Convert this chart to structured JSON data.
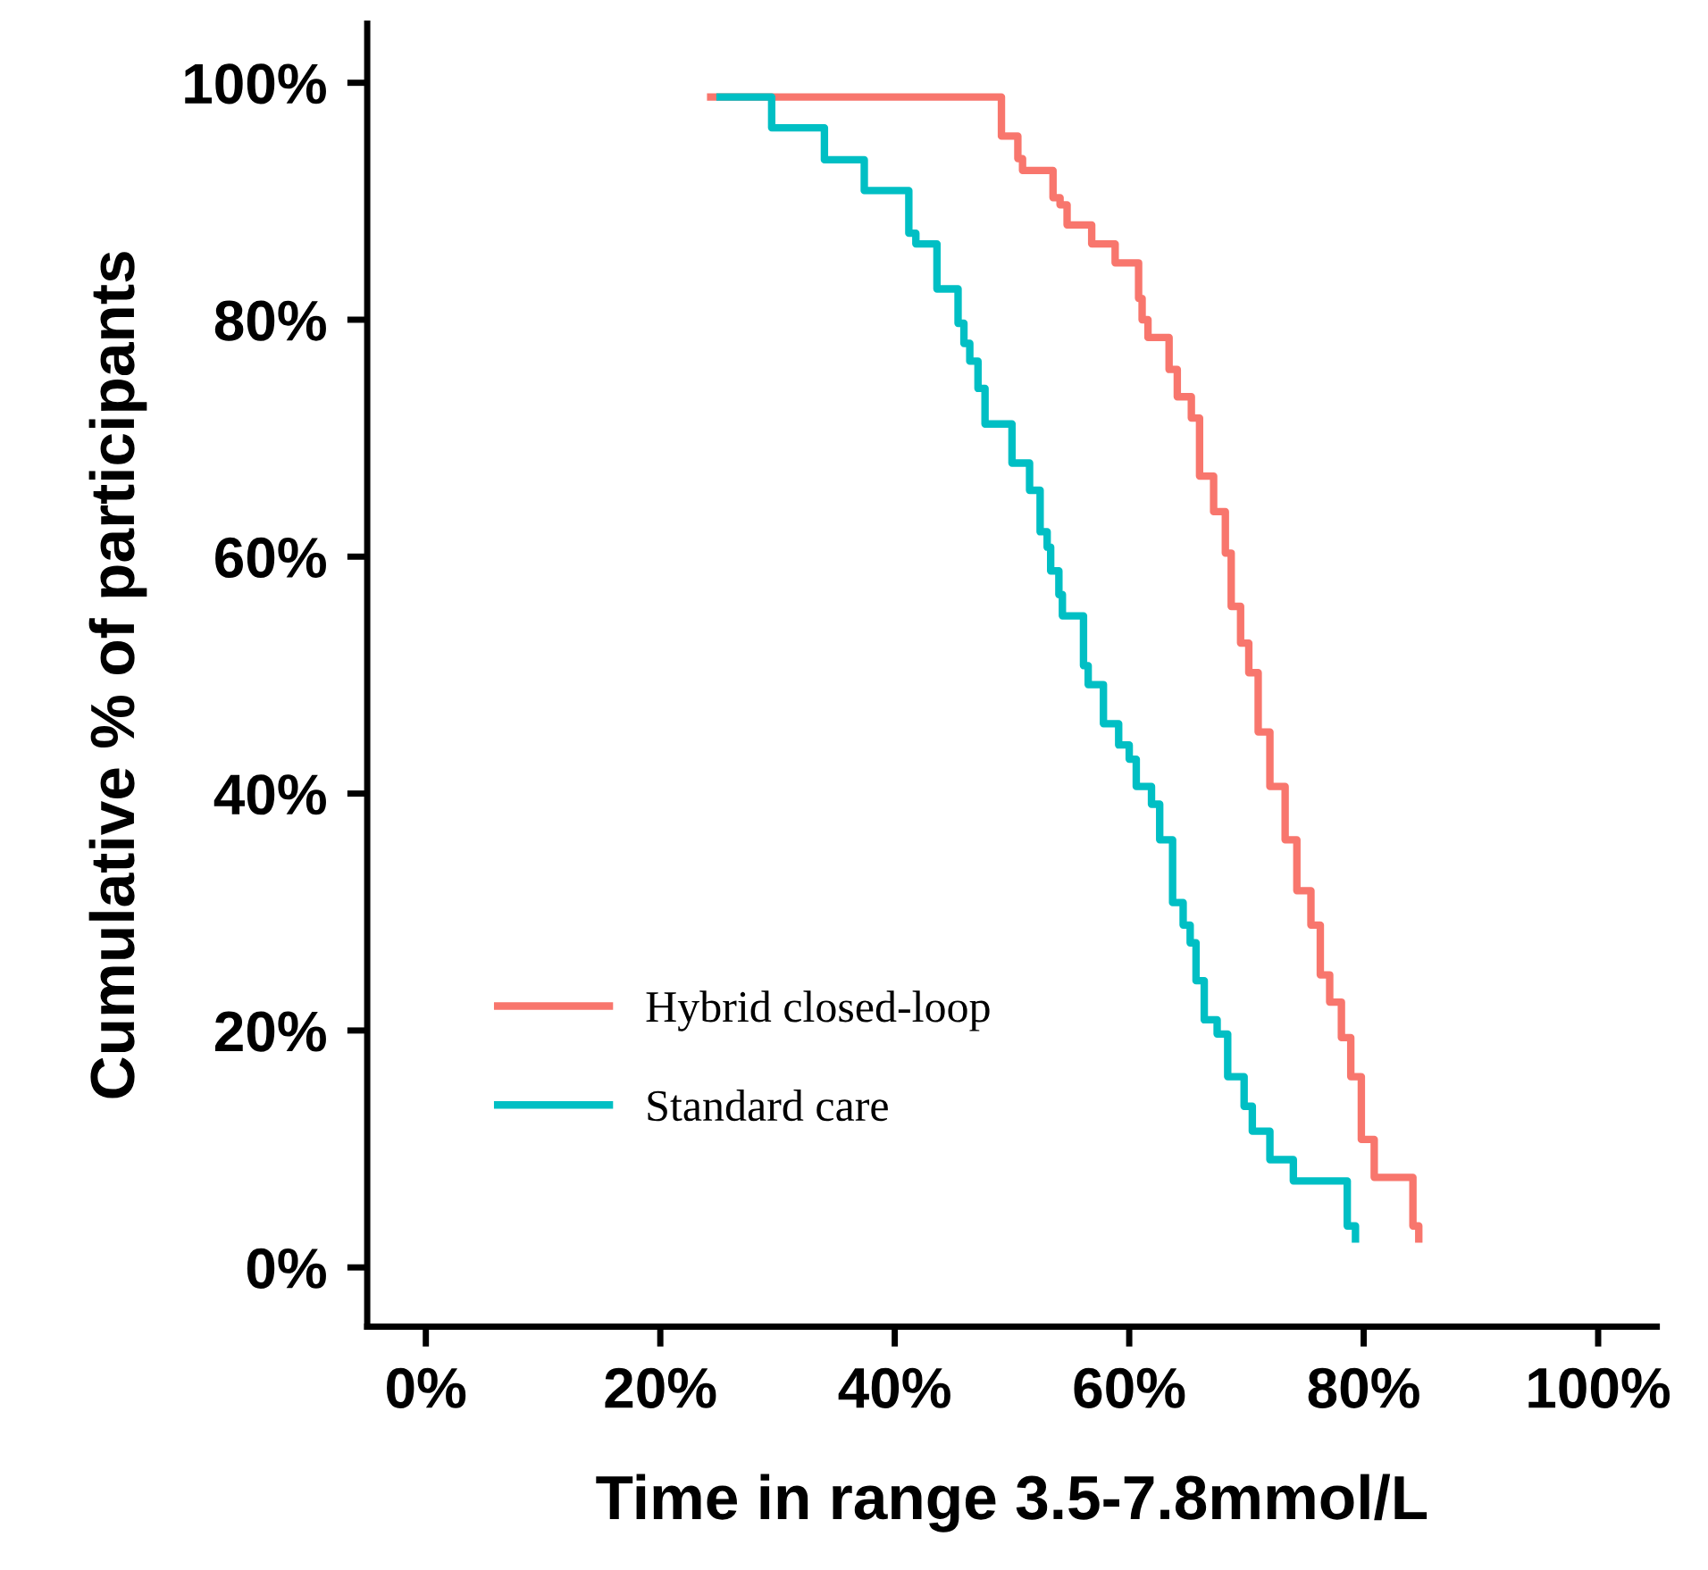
{
  "chart_data": {
    "type": "step",
    "xlabel": "Time in range 3.5-7.8mmol/L",
    "ylabel": "Cumulative % of participants",
    "xlim": [
      -5,
      105
    ],
    "ylim": [
      -5,
      105
    ],
    "xticks": [
      {
        "value": 0,
        "label": "0%"
      },
      {
        "value": 20,
        "label": "20%"
      },
      {
        "value": 40,
        "label": "40%"
      },
      {
        "value": 60,
        "label": "60%"
      },
      {
        "value": 80,
        "label": "80%"
      },
      {
        "value": 100,
        "label": "100%"
      }
    ],
    "yticks": [
      {
        "value": 0,
        "label": "0%"
      },
      {
        "value": 20,
        "label": "20%"
      },
      {
        "value": 40,
        "label": "40%"
      },
      {
        "value": 60,
        "label": "60%"
      },
      {
        "value": 80,
        "label": "80%"
      },
      {
        "value": 100,
        "label": "100%"
      }
    ],
    "grid": false,
    "legend": "bottom left",
    "marker": "none",
    "line_style": "solid",
    "series": [
      {
        "name": "Hybrid closed-loop",
        "color": "#f8766d",
        "x": [
          24.3,
          49.1,
          50.5,
          50.9,
          53.5,
          54.1,
          54.7,
          56.8,
          58.8,
          60.8,
          61.1,
          61.6,
          63.4,
          64.1,
          65.3,
          66.0,
          67.2,
          68.2,
          68.7,
          69.5,
          70.2,
          71.0,
          72.0,
          73.3,
          74.3,
          75.5,
          76.3,
          77.1,
          78.1,
          78.9,
          79.8,
          80.9,
          84.2,
          84.7
        ],
        "values": [
          98.8,
          95.5,
          93.6,
          92.6,
          90.3,
          89.7,
          88.0,
          86.4,
          84.8,
          81.8,
          80.0,
          78.5,
          75.8,
          73.5,
          71.7,
          66.8,
          63.8,
          60.3,
          55.8,
          52.7,
          50.2,
          45.2,
          40.6,
          36.1,
          31.8,
          28.9,
          24.7,
          22.4,
          19.4,
          16.1,
          10.8,
          7.6,
          3.5,
          2.4
        ]
      },
      {
        "name": "Standard care",
        "color": "#00bfc4",
        "x": [
          25.1,
          29.5,
          34.0,
          37.4,
          41.2,
          41.8,
          43.6,
          45.4,
          45.9,
          46.4,
          47.1,
          47.7,
          50.0,
          51.5,
          52.4,
          53.0,
          53.3,
          54.0,
          54.3,
          56.1,
          56.5,
          57.8,
          59.1,
          60.0,
          60.6,
          61.9,
          62.6,
          63.7,
          64.6,
          65.2,
          65.7,
          66.4,
          67.5,
          68.4,
          69.8,
          70.5,
          72.0,
          74.0,
          78.6,
          79.3
        ],
        "values": [
          98.8,
          96.2,
          93.5,
          90.9,
          87.3,
          86.4,
          82.6,
          79.7,
          78.0,
          76.5,
          74.2,
          71.2,
          67.9,
          65.6,
          62.1,
          60.8,
          58.8,
          56.8,
          55.0,
          50.8,
          49.2,
          45.9,
          44.1,
          42.9,
          40.6,
          39.1,
          36.1,
          30.8,
          28.9,
          27.4,
          24.2,
          20.9,
          19.7,
          16.1,
          13.6,
          11.5,
          9.1,
          7.3,
          3.5,
          2.4
        ]
      }
    ]
  }
}
